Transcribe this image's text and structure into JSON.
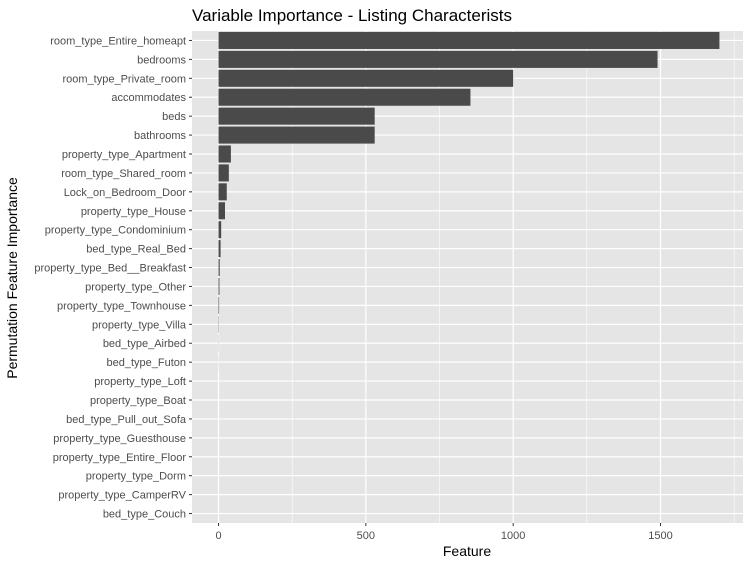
{
  "chart_data": {
    "type": "bar",
    "orientation": "horizontal",
    "title": "Variable Importance - Listing Characterists",
    "xlabel": "Feature",
    "ylabel": "Permutation Feature Importance",
    "xlim": [
      -90,
      1780
    ],
    "x_ticks": [
      0,
      500,
      1000,
      1500
    ],
    "grid": true,
    "colors": {
      "panel": "#e5e5e5",
      "grid": "#ffffff",
      "bar": "#4a4a4a",
      "tick_text": "#4d4d4d"
    },
    "categories": [
      "room_type_Entire_homeapt",
      "bedrooms",
      "room_type_Private_room",
      "accommodates",
      "beds",
      "bathrooms",
      "property_type_Apartment",
      "room_type_Shared_room",
      "Lock_on_Bedroom_Door",
      "property_type_House",
      "property_type_Condominium",
      "bed_type_Real_Bed",
      "property_type_Bed__Breakfast",
      "property_type_Other",
      "property_type_Townhouse",
      "property_type_Villa",
      "bed_type_Airbed",
      "bed_type_Futon",
      "property_type_Loft",
      "property_type_Boat",
      "bed_type_Pull_out_Sofa",
      "property_type_Guesthouse",
      "property_type_Entire_Floor",
      "property_type_Dorm",
      "property_type_CamperRV",
      "bed_type_Couch"
    ],
    "values": [
      1700,
      1490,
      1000,
      855,
      530,
      530,
      42,
      35,
      28,
      22,
      9,
      7,
      4,
      3,
      2,
      1,
      0.5,
      0.3,
      0,
      0,
      0,
      0,
      0,
      0,
      0,
      0
    ]
  }
}
